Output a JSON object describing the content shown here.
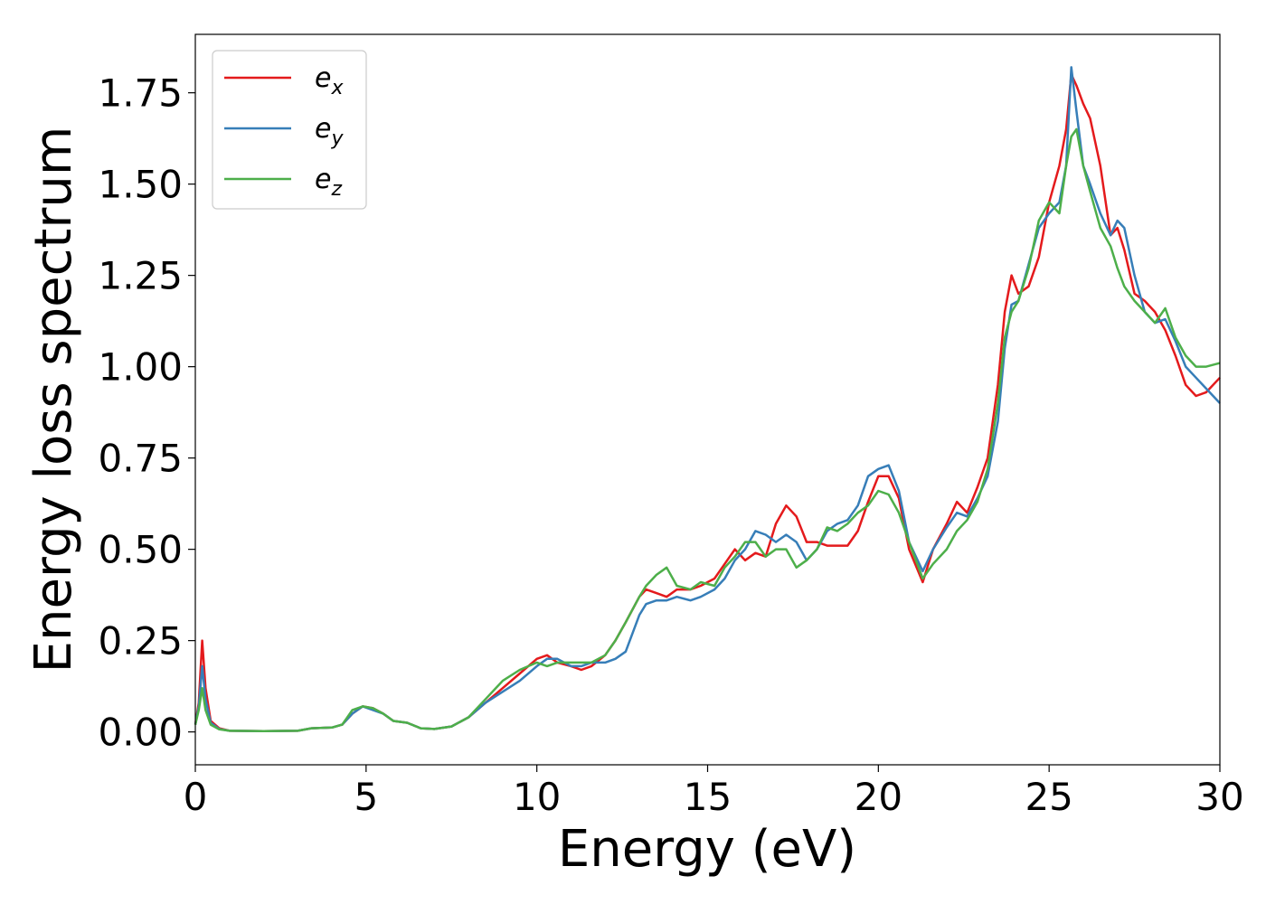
{
  "chart_data": {
    "type": "line",
    "xlabel": "Energy (eV)",
    "ylabel": "Energy loss spectrum",
    "xlim": [
      0,
      30
    ],
    "ylim": [
      -0.09,
      1.91
    ],
    "xticks": [
      0,
      5,
      10,
      15,
      20,
      25,
      30
    ],
    "xtick_labels": [
      "0",
      "5",
      "10",
      "15",
      "20",
      "25",
      "30"
    ],
    "yticks": [
      0.0,
      0.25,
      0.5,
      0.75,
      1.0,
      1.25,
      1.5,
      1.75
    ],
    "ytick_labels": [
      "0.00",
      "0.25",
      "0.50",
      "0.75",
      "1.00",
      "1.25",
      "1.50",
      "1.75"
    ],
    "grid": false,
    "legend_position": "top-left",
    "series": [
      {
        "name": "e",
        "subscript": "x",
        "color": "#e41a1c",
        "x": [
          0,
          0.1,
          0.2,
          0.3,
          0.45,
          0.7,
          1.0,
          2.0,
          3.0,
          3.4,
          4.0,
          4.3,
          4.6,
          4.9,
          5.2,
          5.5,
          5.8,
          6.2,
          6.6,
          7.0,
          7.5,
          8.0,
          8.5,
          9.0,
          9.5,
          10.0,
          10.3,
          10.6,
          11.0,
          11.3,
          11.6,
          12.0,
          12.3,
          12.6,
          13.0,
          13.2,
          13.5,
          13.8,
          14.1,
          14.5,
          14.8,
          15.2,
          15.5,
          15.8,
          16.1,
          16.4,
          16.7,
          17.0,
          17.3,
          17.6,
          17.9,
          18.2,
          18.5,
          18.8,
          19.1,
          19.4,
          19.7,
          20.0,
          20.3,
          20.6,
          20.9,
          21.3,
          21.6,
          22.0,
          22.3,
          22.6,
          22.9,
          23.2,
          23.5,
          23.7,
          23.9,
          24.1,
          24.4,
          24.7,
          25.0,
          25.3,
          25.5,
          25.65,
          25.8,
          26.0,
          26.2,
          26.5,
          26.8,
          27.0,
          27.2,
          27.5,
          27.8,
          28.1,
          28.4,
          28.7,
          29.0,
          29.3,
          29.6,
          30.0
        ],
        "values": [
          0.02,
          0.08,
          0.25,
          0.12,
          0.03,
          0.01,
          0.003,
          0.002,
          0.003,
          0.01,
          0.012,
          0.02,
          0.05,
          0.07,
          0.065,
          0.05,
          0.03,
          0.025,
          0.01,
          0.008,
          0.015,
          0.04,
          0.08,
          0.12,
          0.16,
          0.2,
          0.21,
          0.19,
          0.18,
          0.17,
          0.18,
          0.21,
          0.25,
          0.3,
          0.37,
          0.39,
          0.38,
          0.37,
          0.39,
          0.39,
          0.4,
          0.42,
          0.46,
          0.5,
          0.47,
          0.49,
          0.48,
          0.57,
          0.62,
          0.59,
          0.52,
          0.52,
          0.51,
          0.51,
          0.51,
          0.55,
          0.63,
          0.7,
          0.7,
          0.64,
          0.5,
          0.41,
          0.5,
          0.57,
          0.63,
          0.6,
          0.67,
          0.75,
          0.95,
          1.15,
          1.25,
          1.2,
          1.22,
          1.3,
          1.45,
          1.55,
          1.65,
          1.8,
          1.77,
          1.72,
          1.68,
          1.55,
          1.36,
          1.38,
          1.32,
          1.2,
          1.18,
          1.15,
          1.1,
          1.03,
          0.95,
          0.92,
          0.93,
          0.97
        ]
      },
      {
        "name": "e",
        "subscript": "y",
        "color": "#377eb8",
        "x": [
          0,
          0.1,
          0.2,
          0.3,
          0.45,
          0.7,
          1.0,
          2.0,
          3.0,
          3.4,
          4.0,
          4.3,
          4.6,
          4.9,
          5.2,
          5.5,
          5.8,
          6.2,
          6.6,
          7.0,
          7.5,
          8.0,
          8.5,
          9.0,
          9.5,
          10.0,
          10.3,
          10.6,
          11.0,
          11.3,
          11.6,
          12.0,
          12.3,
          12.6,
          13.0,
          13.2,
          13.5,
          13.8,
          14.1,
          14.5,
          14.8,
          15.2,
          15.5,
          15.8,
          16.1,
          16.4,
          16.7,
          17.0,
          17.3,
          17.6,
          17.9,
          18.2,
          18.5,
          18.8,
          19.1,
          19.4,
          19.7,
          20.0,
          20.3,
          20.6,
          20.9,
          21.3,
          21.6,
          22.0,
          22.3,
          22.6,
          22.9,
          23.2,
          23.5,
          23.7,
          23.9,
          24.1,
          24.4,
          24.7,
          25.0,
          25.3,
          25.5,
          25.65,
          25.8,
          26.0,
          26.2,
          26.5,
          26.8,
          27.0,
          27.2,
          27.5,
          27.8,
          28.1,
          28.4,
          28.7,
          29.0,
          29.3,
          29.6,
          30.0
        ],
        "values": [
          0.02,
          0.07,
          0.18,
          0.09,
          0.025,
          0.008,
          0.003,
          0.002,
          0.003,
          0.01,
          0.012,
          0.02,
          0.05,
          0.07,
          0.06,
          0.05,
          0.03,
          0.025,
          0.01,
          0.008,
          0.015,
          0.04,
          0.08,
          0.11,
          0.14,
          0.18,
          0.2,
          0.2,
          0.18,
          0.18,
          0.19,
          0.19,
          0.2,
          0.22,
          0.32,
          0.35,
          0.36,
          0.36,
          0.37,
          0.36,
          0.37,
          0.39,
          0.42,
          0.47,
          0.5,
          0.55,
          0.54,
          0.52,
          0.54,
          0.52,
          0.47,
          0.5,
          0.55,
          0.57,
          0.58,
          0.62,
          0.7,
          0.72,
          0.73,
          0.66,
          0.52,
          0.44,
          0.5,
          0.56,
          0.6,
          0.59,
          0.64,
          0.7,
          0.85,
          1.05,
          1.17,
          1.18,
          1.28,
          1.38,
          1.42,
          1.45,
          1.55,
          1.82,
          1.7,
          1.55,
          1.5,
          1.42,
          1.36,
          1.4,
          1.38,
          1.25,
          1.15,
          1.12,
          1.13,
          1.07,
          1.0,
          0.97,
          0.94,
          0.9
        ]
      },
      {
        "name": "e",
        "subscript": "z",
        "color": "#4daf4a",
        "x": [
          0,
          0.1,
          0.2,
          0.3,
          0.45,
          0.7,
          1.0,
          2.0,
          3.0,
          3.4,
          4.0,
          4.3,
          4.6,
          4.9,
          5.2,
          5.5,
          5.8,
          6.2,
          6.6,
          7.0,
          7.5,
          8.0,
          8.5,
          9.0,
          9.5,
          10.0,
          10.3,
          10.6,
          11.0,
          11.3,
          11.6,
          12.0,
          12.3,
          12.6,
          13.0,
          13.2,
          13.5,
          13.8,
          14.1,
          14.5,
          14.8,
          15.2,
          15.5,
          15.8,
          16.1,
          16.4,
          16.7,
          17.0,
          17.3,
          17.6,
          17.9,
          18.2,
          18.5,
          18.8,
          19.1,
          19.4,
          19.7,
          20.0,
          20.3,
          20.6,
          20.9,
          21.3,
          21.6,
          22.0,
          22.3,
          22.6,
          22.9,
          23.2,
          23.5,
          23.7,
          23.9,
          24.1,
          24.4,
          24.7,
          25.0,
          25.3,
          25.5,
          25.65,
          25.8,
          26.0,
          26.2,
          26.5,
          26.8,
          27.0,
          27.2,
          27.5,
          27.8,
          28.1,
          28.4,
          28.7,
          29.0,
          29.3,
          29.6,
          30.0
        ],
        "values": [
          0.02,
          0.06,
          0.12,
          0.06,
          0.02,
          0.007,
          0.003,
          0.002,
          0.003,
          0.01,
          0.012,
          0.02,
          0.06,
          0.07,
          0.065,
          0.05,
          0.03,
          0.025,
          0.01,
          0.008,
          0.015,
          0.04,
          0.09,
          0.14,
          0.17,
          0.19,
          0.18,
          0.19,
          0.19,
          0.19,
          0.19,
          0.21,
          0.25,
          0.3,
          0.37,
          0.4,
          0.43,
          0.45,
          0.4,
          0.39,
          0.41,
          0.4,
          0.45,
          0.48,
          0.52,
          0.52,
          0.48,
          0.5,
          0.5,
          0.45,
          0.47,
          0.5,
          0.56,
          0.55,
          0.57,
          0.6,
          0.62,
          0.66,
          0.65,
          0.6,
          0.52,
          0.42,
          0.46,
          0.5,
          0.55,
          0.58,
          0.63,
          0.72,
          0.9,
          1.08,
          1.15,
          1.18,
          1.27,
          1.4,
          1.45,
          1.42,
          1.55,
          1.63,
          1.65,
          1.55,
          1.48,
          1.38,
          1.33,
          1.27,
          1.22,
          1.18,
          1.15,
          1.12,
          1.16,
          1.08,
          1.03,
          1.0,
          1.0,
          1.01
        ]
      }
    ]
  }
}
